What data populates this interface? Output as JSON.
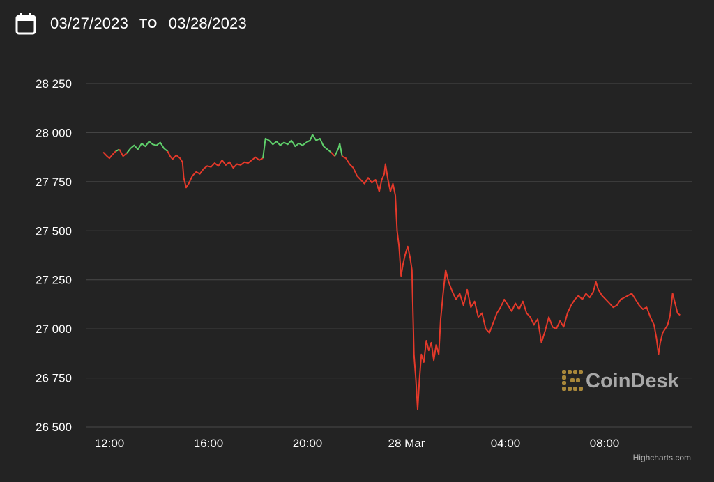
{
  "date_range": {
    "from": "03/27/2023",
    "separator": "TO",
    "to": "03/28/2023"
  },
  "icons": {
    "calendar": "calendar-icon",
    "watermark_logo": "coindesk-logo-icon"
  },
  "watermark": "CoinDesk",
  "credits": "Highcharts.com",
  "colors": {
    "background": "#232323",
    "up": "#5fcf6b",
    "down": "#e5392a",
    "gridline": "#4a4a4a",
    "watermark_logo": "#a8873a"
  },
  "chart_data": {
    "type": "line",
    "title": "",
    "xlabel": "",
    "ylabel": "",
    "ylim": [
      26500,
      28250
    ],
    "grid": true,
    "y_ticks": [
      {
        "value": 28250,
        "label": "28 250"
      },
      {
        "value": 28000,
        "label": "28 000"
      },
      {
        "value": 27750,
        "label": "27 750"
      },
      {
        "value": 27500,
        "label": "27 500"
      },
      {
        "value": 27250,
        "label": "27 250"
      },
      {
        "value": 27000,
        "label": "27 000"
      },
      {
        "value": 26750,
        "label": "26 750"
      },
      {
        "value": 26500,
        "label": "26 500"
      }
    ],
    "x_ticks": [
      {
        "hour": 12,
        "label": "12:00"
      },
      {
        "hour": 16,
        "label": "16:00"
      },
      {
        "hour": 20,
        "label": "20:00"
      },
      {
        "hour": 24,
        "label": "28 Mar"
      },
      {
        "hour": 28,
        "label": "04:00"
      },
      {
        "hour": 32,
        "label": "08:00"
      }
    ],
    "x_unit": "hours from 03/27/2023 00:00",
    "x_range": [
      11.5,
      35.1
    ],
    "reference_value": 27900,
    "series": [
      {
        "color_rule": "green above reference value, red below",
        "points": [
          [
            11.75,
            27900
          ],
          [
            11.9,
            27880
          ],
          [
            12.0,
            27870
          ],
          [
            12.1,
            27885
          ],
          [
            12.25,
            27905
          ],
          [
            12.4,
            27915
          ],
          [
            12.55,
            27880
          ],
          [
            12.7,
            27895
          ],
          [
            12.85,
            27920
          ],
          [
            13.0,
            27935
          ],
          [
            13.15,
            27915
          ],
          [
            13.3,
            27945
          ],
          [
            13.45,
            27930
          ],
          [
            13.6,
            27955
          ],
          [
            13.75,
            27940
          ],
          [
            13.9,
            27935
          ],
          [
            14.05,
            27950
          ],
          [
            14.2,
            27920
          ],
          [
            14.35,
            27905
          ],
          [
            14.45,
            27880
          ],
          [
            14.55,
            27865
          ],
          [
            14.7,
            27885
          ],
          [
            14.85,
            27870
          ],
          [
            14.95,
            27850
          ],
          [
            15.0,
            27770
          ],
          [
            15.1,
            27720
          ],
          [
            15.2,
            27740
          ],
          [
            15.35,
            27780
          ],
          [
            15.5,
            27800
          ],
          [
            15.65,
            27790
          ],
          [
            15.8,
            27815
          ],
          [
            15.95,
            27830
          ],
          [
            16.1,
            27825
          ],
          [
            16.25,
            27845
          ],
          [
            16.4,
            27830
          ],
          [
            16.55,
            27860
          ],
          [
            16.7,
            27835
          ],
          [
            16.85,
            27850
          ],
          [
            17.0,
            27820
          ],
          [
            17.15,
            27840
          ],
          [
            17.3,
            27835
          ],
          [
            17.45,
            27850
          ],
          [
            17.6,
            27845
          ],
          [
            17.75,
            27860
          ],
          [
            17.9,
            27875
          ],
          [
            18.05,
            27860
          ],
          [
            18.2,
            27870
          ],
          [
            18.3,
            27970
          ],
          [
            18.45,
            27960
          ],
          [
            18.6,
            27940
          ],
          [
            18.75,
            27955
          ],
          [
            18.9,
            27935
          ],
          [
            19.05,
            27950
          ],
          [
            19.2,
            27940
          ],
          [
            19.35,
            27960
          ],
          [
            19.5,
            27930
          ],
          [
            19.65,
            27945
          ],
          [
            19.8,
            27935
          ],
          [
            19.95,
            27950
          ],
          [
            20.1,
            27960
          ],
          [
            20.2,
            27990
          ],
          [
            20.35,
            27960
          ],
          [
            20.5,
            27970
          ],
          [
            20.65,
            27930
          ],
          [
            20.8,
            27915
          ],
          [
            20.95,
            27900
          ],
          [
            21.1,
            27880
          ],
          [
            21.25,
            27920
          ],
          [
            21.3,
            27945
          ],
          [
            21.4,
            27880
          ],
          [
            21.55,
            27870
          ],
          [
            21.7,
            27840
          ],
          [
            21.85,
            27820
          ],
          [
            22.0,
            27780
          ],
          [
            22.15,
            27760
          ],
          [
            22.3,
            27740
          ],
          [
            22.45,
            27770
          ],
          [
            22.6,
            27745
          ],
          [
            22.75,
            27760
          ],
          [
            22.9,
            27700
          ],
          [
            23.0,
            27760
          ],
          [
            23.1,
            27790
          ],
          [
            23.15,
            27840
          ],
          [
            23.25,
            27760
          ],
          [
            23.35,
            27700
          ],
          [
            23.45,
            27740
          ],
          [
            23.55,
            27680
          ],
          [
            23.62,
            27500
          ],
          [
            23.7,
            27420
          ],
          [
            23.78,
            27270
          ],
          [
            23.86,
            27330
          ],
          [
            23.95,
            27380
          ],
          [
            24.05,
            27420
          ],
          [
            24.15,
            27360
          ],
          [
            24.22,
            27300
          ],
          [
            24.3,
            26870
          ],
          [
            24.38,
            26740
          ],
          [
            24.45,
            26590
          ],
          [
            24.52,
            26740
          ],
          [
            24.6,
            26870
          ],
          [
            24.7,
            26830
          ],
          [
            24.8,
            26940
          ],
          [
            24.9,
            26890
          ],
          [
            25.0,
            26930
          ],
          [
            25.1,
            26840
          ],
          [
            25.2,
            26920
          ],
          [
            25.3,
            26870
          ],
          [
            25.38,
            27050
          ],
          [
            25.48,
            27180
          ],
          [
            25.58,
            27300
          ],
          [
            25.7,
            27240
          ],
          [
            25.85,
            27190
          ],
          [
            26.0,
            27150
          ],
          [
            26.15,
            27180
          ],
          [
            26.3,
            27120
          ],
          [
            26.45,
            27200
          ],
          [
            26.6,
            27110
          ],
          [
            26.75,
            27140
          ],
          [
            26.9,
            27060
          ],
          [
            27.05,
            27080
          ],
          [
            27.2,
            27000
          ],
          [
            27.35,
            26980
          ],
          [
            27.5,
            27030
          ],
          [
            27.65,
            27080
          ],
          [
            27.8,
            27110
          ],
          [
            27.95,
            27150
          ],
          [
            28.1,
            27120
          ],
          [
            28.25,
            27090
          ],
          [
            28.4,
            27130
          ],
          [
            28.55,
            27100
          ],
          [
            28.7,
            27140
          ],
          [
            28.85,
            27080
          ],
          [
            29.0,
            27060
          ],
          [
            29.15,
            27020
          ],
          [
            29.3,
            27050
          ],
          [
            29.45,
            26930
          ],
          [
            29.6,
            26990
          ],
          [
            29.75,
            27060
          ],
          [
            29.9,
            27010
          ],
          [
            30.05,
            27000
          ],
          [
            30.2,
            27040
          ],
          [
            30.35,
            27010
          ],
          [
            30.5,
            27080
          ],
          [
            30.65,
            27120
          ],
          [
            30.8,
            27150
          ],
          [
            30.95,
            27170
          ],
          [
            31.1,
            27150
          ],
          [
            31.25,
            27180
          ],
          [
            31.4,
            27160
          ],
          [
            31.55,
            27190
          ],
          [
            31.65,
            27240
          ],
          [
            31.75,
            27200
          ],
          [
            31.9,
            27170
          ],
          [
            32.05,
            27150
          ],
          [
            32.2,
            27130
          ],
          [
            32.35,
            27110
          ],
          [
            32.5,
            27120
          ],
          [
            32.65,
            27150
          ],
          [
            32.8,
            27160
          ],
          [
            32.95,
            27170
          ],
          [
            33.1,
            27180
          ],
          [
            33.25,
            27150
          ],
          [
            33.4,
            27120
          ],
          [
            33.55,
            27100
          ],
          [
            33.7,
            27110
          ],
          [
            33.85,
            27060
          ],
          [
            34.0,
            27020
          ],
          [
            34.1,
            26950
          ],
          [
            34.18,
            26870
          ],
          [
            34.25,
            26930
          ],
          [
            34.35,
            26980
          ],
          [
            34.45,
            27000
          ],
          [
            34.55,
            27020
          ],
          [
            34.65,
            27070
          ],
          [
            34.75,
            27180
          ],
          [
            34.85,
            27130
          ],
          [
            34.95,
            27080
          ],
          [
            35.05,
            27070
          ]
        ]
      }
    ]
  }
}
